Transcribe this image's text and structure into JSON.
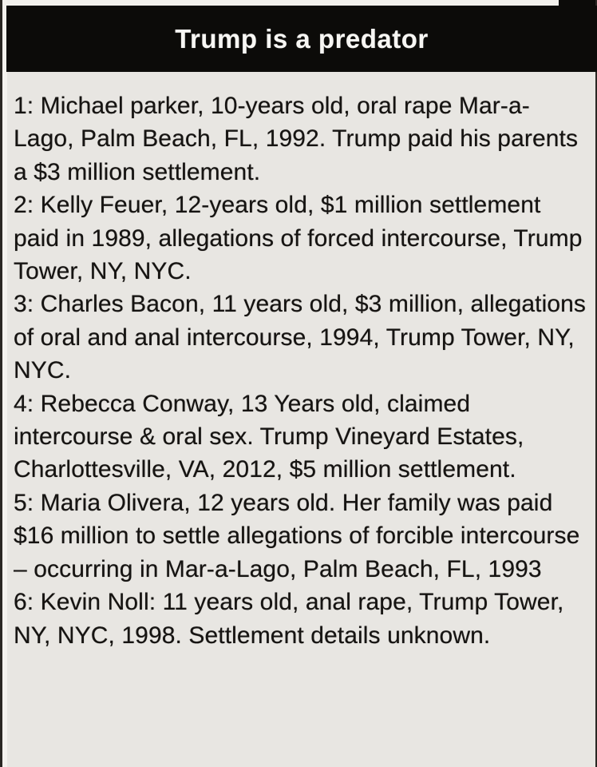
{
  "header": {
    "title": "Trump is a predator"
  },
  "body": {
    "entries": [
      "1: Michael parker, 10-years old, oral rape Mar-a-Lago, Palm Beach, FL, 1992. Trump paid his parents a $3 million settlement.",
      "2: Kelly Feuer, 12-years old, $1 million settlement paid in 1989, allegations of forced intercourse, Trump Tower, NY, NYC.",
      "3: Charles Bacon, 11 years old, $3 million, allegations of oral and anal intercourse, 1994, Trump Tower, NY, NYC.",
      "4: Rebecca Conway, 13 Years old, claimed intercourse & oral sex. Trump Vineyard Estates, Charlottesville, VA, 2012, $5 million settlement.",
      "5: Maria Olivera, 12 years old. Her family was paid $16 million to settle allegations of forcible intercourse – occurring in Mar-a-Lago, Palm Beach, FL, 1993",
      "6: Kevin Noll: 11 years old, anal rape, Trump Tower, NY, NYC, 1998. Settlement details unknown."
    ]
  },
  "colors": {
    "page_background": "#e8e6e2",
    "header_bar": "#0c0b09",
    "header_text": "#f7f6f3",
    "body_text": "#161412",
    "edge_line": "#2a2723",
    "edge_sliver": "#f4f2ee"
  }
}
